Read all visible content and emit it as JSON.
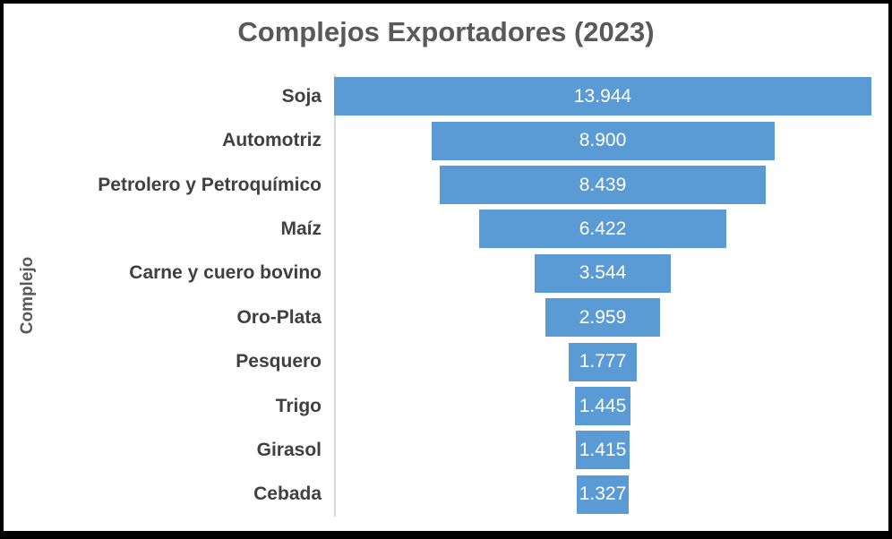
{
  "colors": {
    "bar": "#5B9BD5",
    "value_text": "#FFFFFF",
    "category_text": "#404040",
    "title_text": "#595959",
    "axis_line": "#D9D9D9",
    "frame_border": "#000000",
    "background": "#FFFFFF"
  },
  "chart_data": {
    "type": "bar",
    "subtype": "funnel-centered-horizontal",
    "title": "Complejos Exportadores (2023)",
    "xlabel": "",
    "ylabel": "Complejo",
    "categories": [
      "Soja",
      "Automotriz",
      "Petrolero y Petroquímico",
      "Maíz",
      "Carne y cuero bovino",
      "Oro-Plata",
      "Pesquero",
      "Trigo",
      "Girasol",
      "Cebada"
    ],
    "values": [
      13944,
      8900,
      8439,
      6422,
      3544,
      2959,
      1777,
      1445,
      1415,
      1327
    ],
    "value_labels": [
      "13.944",
      "8.900",
      "8.439",
      "6.422",
      "3.544",
      "2.959",
      "1.777",
      "1.445",
      "1.415",
      "1.327"
    ],
    "max_value": 13944,
    "grid": false,
    "legend": false,
    "value_label_position": "inside-center",
    "bars_centered": true
  }
}
